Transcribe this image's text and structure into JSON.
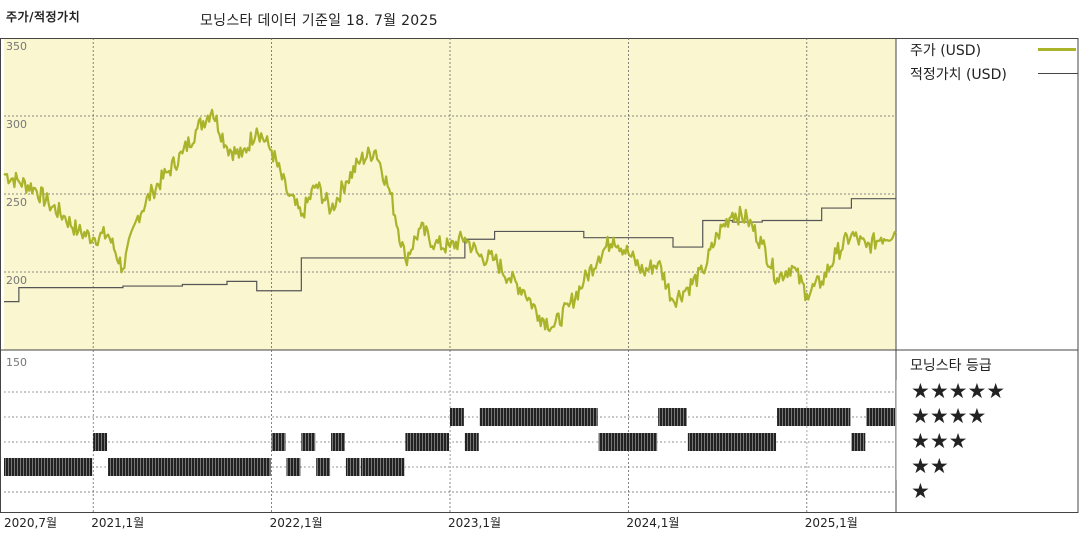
{
  "header": {
    "title": "주가/적정가치",
    "subtitle": "모닝스타 데이터 기준일 18. 7월 2025"
  },
  "legend": {
    "price_label": "주가 (USD)",
    "fair_label": "적정가치 (USD)"
  },
  "rating_panel": {
    "title": "모닝스타 등급",
    "rows": [
      "★★★★★",
      "★★★★",
      "★★★",
      "★★",
      "★"
    ]
  },
  "colors": {
    "plot_bg": "#faf6d0",
    "price_line": "#aab42a",
    "fair_line": "#555555",
    "rating_bar": "#222222",
    "grid": "#666666"
  },
  "chart_data": [
    {
      "type": "line",
      "x_start": "2020-07",
      "x_end": "2025-07",
      "y_ticks": [
        "350",
        "300",
        "250",
        "200",
        "150"
      ],
      "ylim": [
        150,
        350
      ],
      "x_tick_labels": [
        "2020,7월",
        "2021,1월",
        "2022,1월",
        "2023,1월",
        "2024,1월",
        "2025,1월"
      ],
      "x_tick_dates": [
        "2020-07",
        "2021-01",
        "2022-01",
        "2023-01",
        "2024-01",
        "2025-01"
      ],
      "grid": true,
      "legend_position": "right",
      "series": [
        {
          "name": "주가 (USD)",
          "points": [
            [
              "2020-07",
              263
            ],
            [
              "2020-08",
              258
            ],
            [
              "2020-09",
              254
            ],
            [
              "2020-10",
              244
            ],
            [
              "2020-11",
              236
            ],
            [
              "2020-12",
              226
            ],
            [
              "2021-01",
              222
            ],
            [
              "2021-02",
              224
            ],
            [
              "2021-03",
              202
            ],
            [
              "2021-04",
              236
            ],
            [
              "2021-05",
              252
            ],
            [
              "2021-06",
              264
            ],
            [
              "2021-07",
              276
            ],
            [
              "2021-08",
              292
            ],
            [
              "2021-09",
              304
            ],
            [
              "2021-10",
              280
            ],
            [
              "2021-11",
              274
            ],
            [
              "2021-12",
              292
            ],
            [
              "2022-01",
              278
            ],
            [
              "2022-02",
              252
            ],
            [
              "2022-03",
              236
            ],
            [
              "2022-04",
              256
            ],
            [
              "2022-05",
              240
            ],
            [
              "2022-06",
              258
            ],
            [
              "2022-07",
              272
            ],
            [
              "2022-08",
              278
            ],
            [
              "2022-09",
              250
            ],
            [
              "2022-10",
              208
            ],
            [
              "2022-11",
              228
            ],
            [
              "2022-12",
              218
            ],
            [
              "2023-01",
              216
            ],
            [
              "2023-02",
              222
            ],
            [
              "2023-03",
              210
            ],
            [
              "2023-04",
              208
            ],
            [
              "2023-05",
              196
            ],
            [
              "2023-06",
              188
            ],
            [
              "2023-07",
              172
            ],
            [
              "2023-08",
              165
            ],
            [
              "2023-09",
              178
            ],
            [
              "2023-10",
              194
            ],
            [
              "2023-11",
              210
            ],
            [
              "2023-12",
              222
            ],
            [
              "2024-01",
              212
            ],
            [
              "2024-02",
              200
            ],
            [
              "2024-03",
              206
            ],
            [
              "2024-04",
              182
            ],
            [
              "2024-05",
              190
            ],
            [
              "2024-06",
              200
            ],
            [
              "2024-07",
              224
            ],
            [
              "2024-08",
              238
            ],
            [
              "2024-09",
              234
            ],
            [
              "2024-10",
              218
            ],
            [
              "2024-11",
              196
            ],
            [
              "2024-12",
              204
            ],
            [
              "2025-01",
              186
            ],
            [
              "2025-02",
              194
            ],
            [
              "2025-03",
              212
            ],
            [
              "2025-04",
              224
            ],
            [
              "2025-05",
              216
            ],
            [
              "2025-06",
              222
            ],
            [
              "2025-07",
              226
            ]
          ]
        },
        {
          "name": "적정가치 (USD)",
          "step": true,
          "points": [
            [
              "2020-07",
              181
            ],
            [
              "2020-08",
              190
            ],
            [
              "2021-03",
              191
            ],
            [
              "2021-07",
              192
            ],
            [
              "2021-10",
              194
            ],
            [
              "2021-12",
              188
            ],
            [
              "2022-03",
              209
            ],
            [
              "2022-12",
              209
            ],
            [
              "2023-02",
              221
            ],
            [
              "2023-04",
              226
            ],
            [
              "2023-10",
              222
            ],
            [
              "2024-04",
              216
            ],
            [
              "2024-06",
              233
            ],
            [
              "2024-08",
              232
            ],
            [
              "2024-10",
              233
            ],
            [
              "2024-12",
              233
            ],
            [
              "2025-02",
              241
            ],
            [
              "2025-04",
              247
            ],
            [
              "2025-07",
              247
            ]
          ]
        }
      ]
    },
    {
      "type": "bar",
      "title": "모닝스타 등급",
      "levels": [
        1,
        2,
        3,
        4,
        5
      ],
      "ratings": [
        {
          "from": "2020-07",
          "to": "2021-01",
          "stars": 2
        },
        {
          "from": "2021-01",
          "to": "2021-02",
          "stars": 3
        },
        {
          "from": "2021-02",
          "to": "2022-01",
          "stars": 2
        },
        {
          "from": "2022-01",
          "to": "2022-02",
          "stars": 3
        },
        {
          "from": "2022-02",
          "to": "2022-03",
          "stars": 2
        },
        {
          "from": "2022-03",
          "to": "2022-04",
          "stars": 3
        },
        {
          "from": "2022-04",
          "to": "2022-05",
          "stars": 2
        },
        {
          "from": "2022-05",
          "to": "2022-06",
          "stars": 3
        },
        {
          "from": "2022-06",
          "to": "2022-07",
          "stars": 2
        },
        {
          "from": "2022-07",
          "to": "2022-10",
          "stars": 2
        },
        {
          "from": "2022-10",
          "to": "2023-01",
          "stars": 3
        },
        {
          "from": "2023-01",
          "to": "2023-02",
          "stars": 4
        },
        {
          "from": "2023-02",
          "to": "2023-03",
          "stars": 3
        },
        {
          "from": "2023-03",
          "to": "2023-11",
          "stars": 4
        },
        {
          "from": "2023-11",
          "to": "2024-03",
          "stars": 3
        },
        {
          "from": "2024-03",
          "to": "2024-05",
          "stars": 4
        },
        {
          "from": "2024-05",
          "to": "2024-11",
          "stars": 3
        },
        {
          "from": "2024-11",
          "to": "2025-04",
          "stars": 4
        },
        {
          "from": "2025-04",
          "to": "2025-05",
          "stars": 3
        },
        {
          "from": "2025-05",
          "to": "2025-07",
          "stars": 4
        }
      ]
    }
  ]
}
